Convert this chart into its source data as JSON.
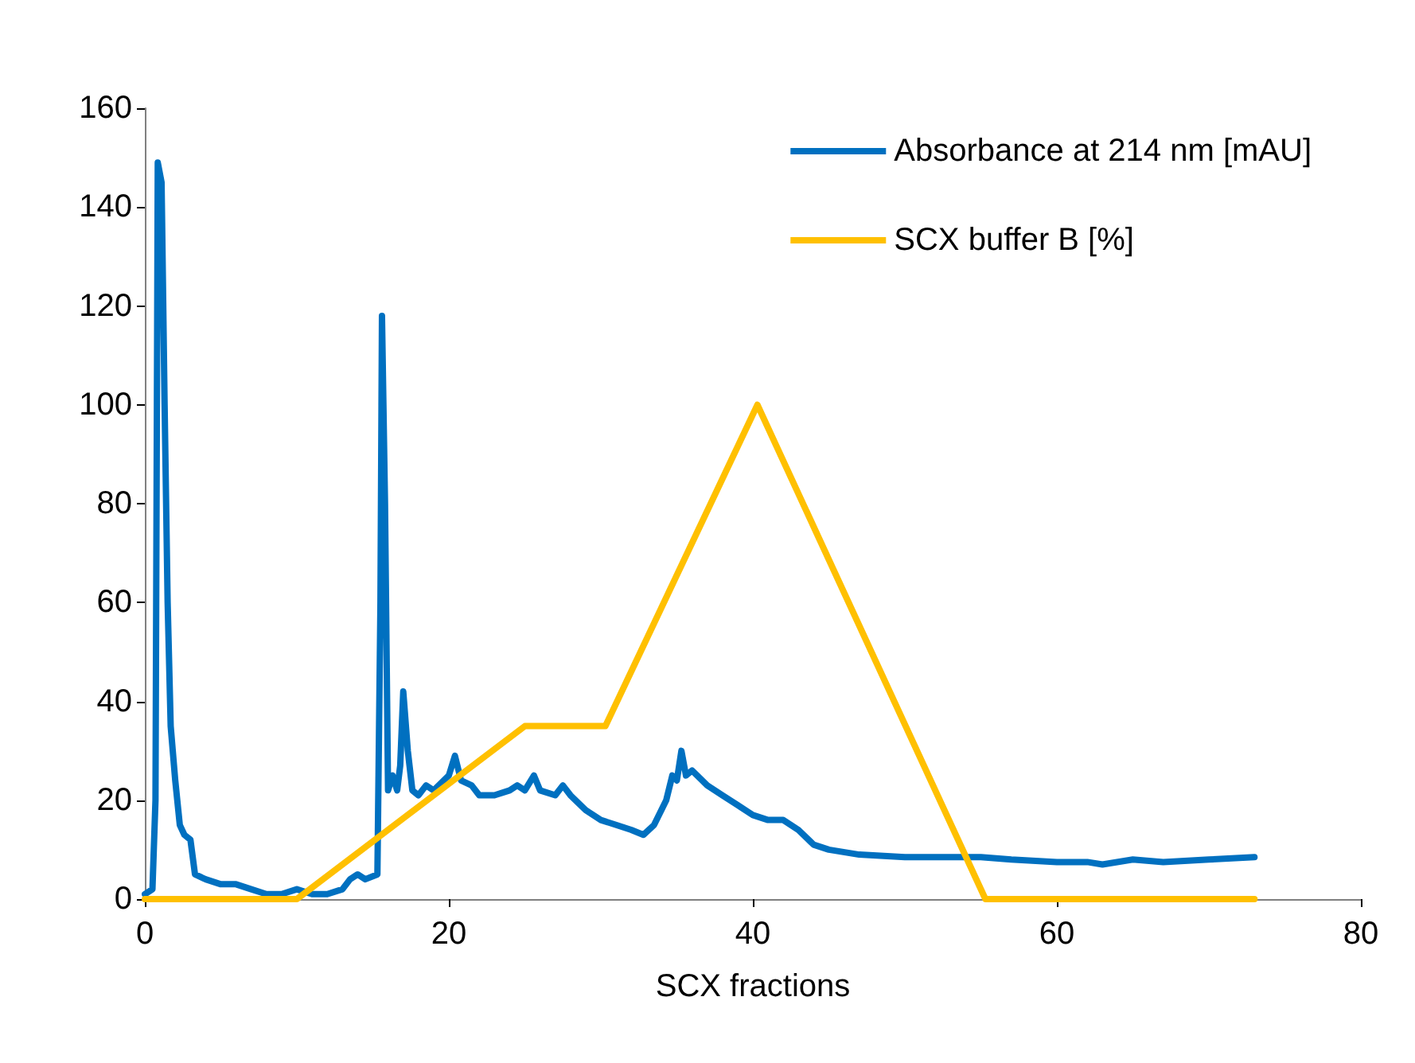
{
  "chart_data": {
    "type": "line",
    "xlabel": "SCX fractions",
    "xlim": [
      0,
      80
    ],
    "xticks": [
      0,
      20,
      40,
      60,
      80
    ],
    "ylim": [
      0,
      160
    ],
    "yticks": [
      0,
      20,
      40,
      60,
      80,
      100,
      120,
      140,
      160
    ],
    "grid": false,
    "legend": "top right",
    "marker": "none",
    "line_style": "solid",
    "series": [
      {
        "name": "Absorbance at 214 nm [mAU]",
        "color": "#0070c0",
        "x": [
          0,
          0.5,
          0.7,
          0.85,
          1.1,
          1.3,
          1.5,
          1.7,
          2.0,
          2.3,
          2.6,
          3.0,
          3.3,
          4,
          5,
          6,
          7,
          8,
          9,
          10,
          11,
          12,
          13,
          13.5,
          14,
          14.5,
          15.3,
          15.5,
          15.6,
          15.8,
          16,
          16.3,
          16.6,
          16.8,
          17.0,
          17.3,
          17.6,
          18,
          18.5,
          19,
          20,
          20.4,
          20.8,
          21.5,
          22,
          23,
          24,
          24.5,
          25,
          25.6,
          26,
          27,
          27.5,
          28,
          29,
          30,
          31,
          32,
          32.8,
          33.5,
          34.3,
          34.7,
          35,
          35.3,
          35.6,
          36,
          37,
          38,
          39,
          40,
          41,
          42,
          43,
          44,
          45,
          47,
          50,
          52,
          55,
          57,
          60,
          62,
          63,
          65,
          67,
          70,
          73
        ],
        "values": [
          1,
          2,
          20,
          149,
          145,
          100,
          60,
          35,
          24,
          15,
          13,
          12,
          5,
          4,
          3,
          3,
          2,
          1,
          1,
          2,
          1,
          1,
          2,
          4,
          5,
          4,
          5,
          60,
          118,
          80,
          22,
          25,
          22,
          27,
          42,
          30,
          22,
          21,
          23,
          22,
          25,
          29,
          24,
          23,
          21,
          21,
          22,
          23,
          22,
          25,
          22,
          21,
          23,
          21,
          18,
          16,
          15,
          14,
          13,
          15,
          20,
          25,
          24,
          30,
          25,
          26,
          23,
          21,
          19,
          17,
          16,
          16,
          14,
          11,
          10,
          9,
          8.5,
          8.5,
          8.5,
          8,
          7.5,
          7.5,
          7,
          8,
          7.5,
          8,
          8.5
        ]
      },
      {
        "name": "SCX buffer B [%]",
        "color": "#ffc000",
        "x": [
          0,
          10,
          25,
          30.3,
          40.3,
          55.3,
          73
        ],
        "values": [
          0,
          0,
          35,
          35,
          100,
          0,
          0
        ]
      }
    ]
  }
}
